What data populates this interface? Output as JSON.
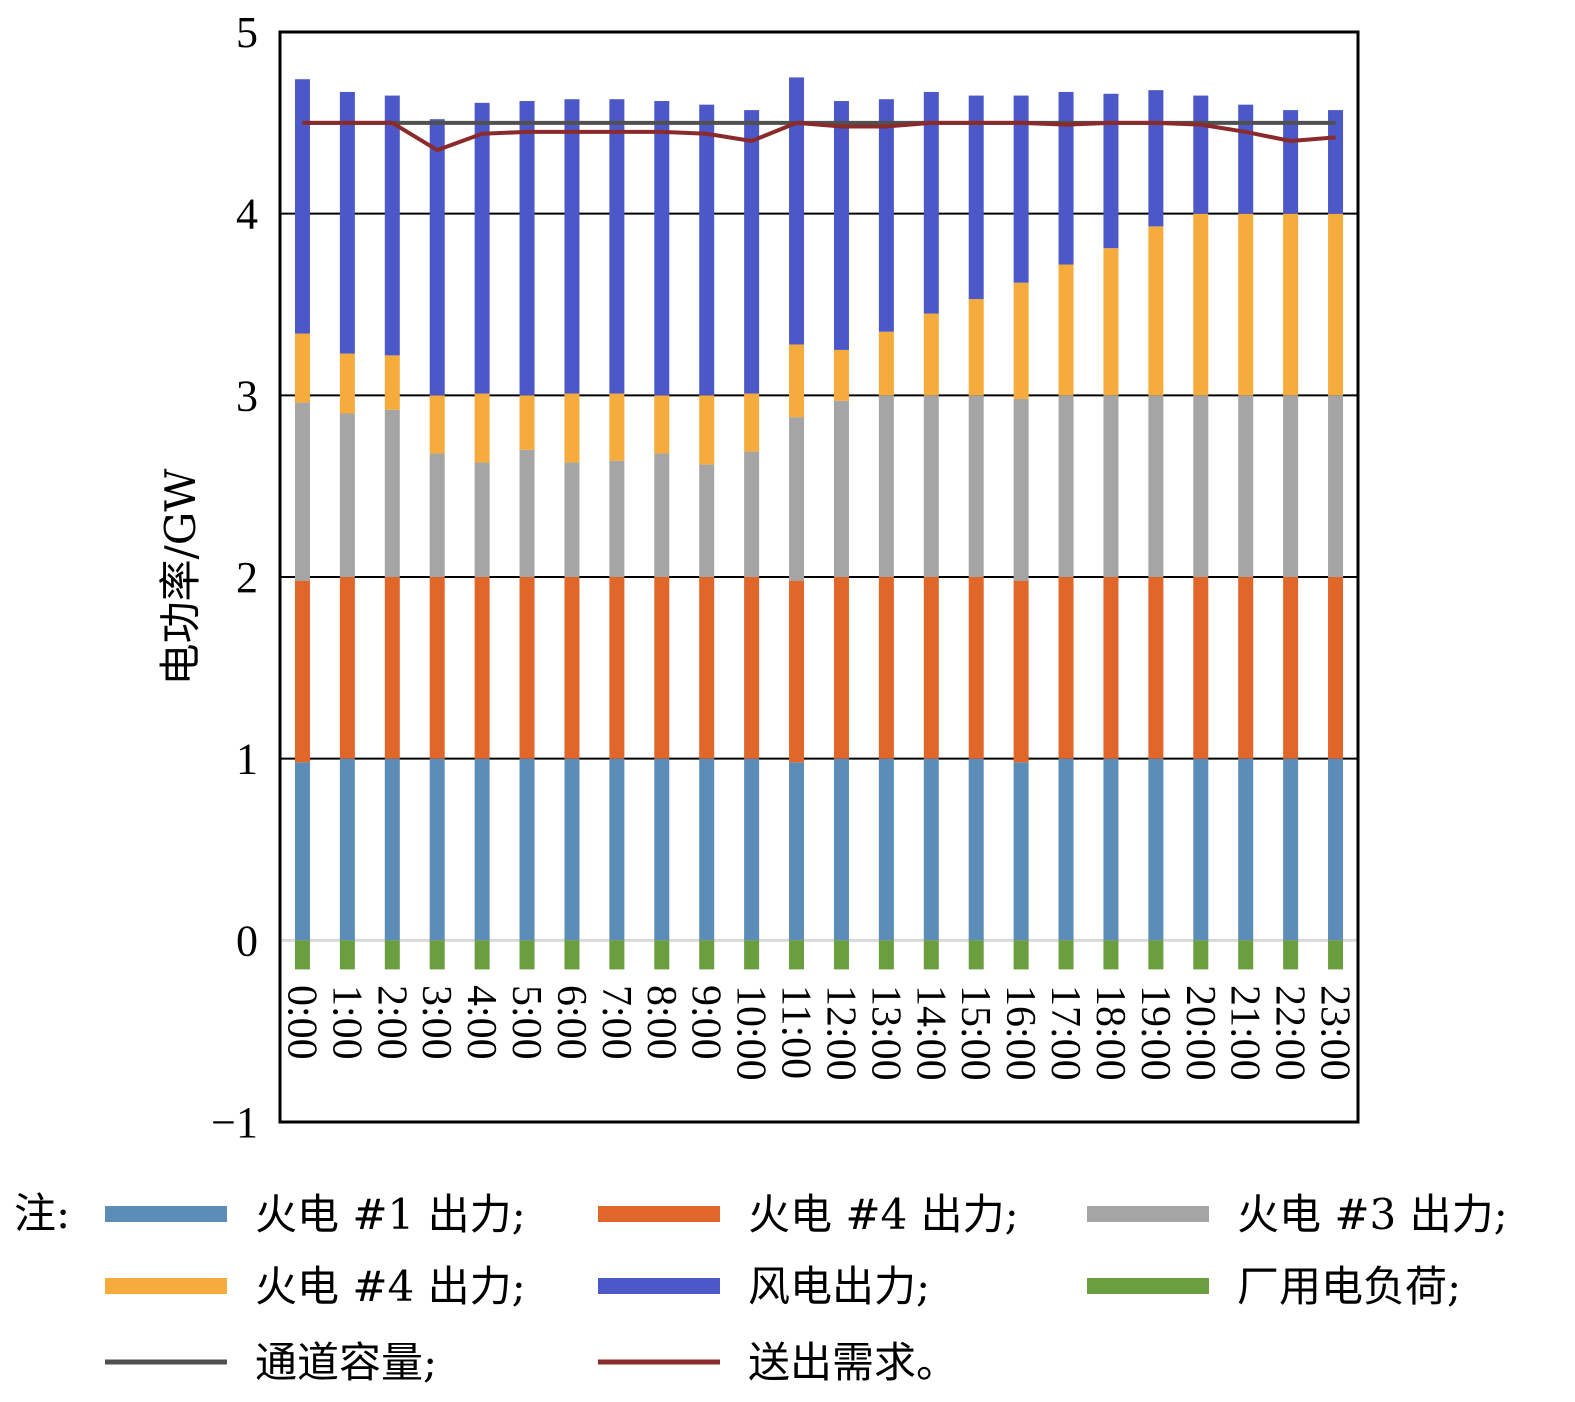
{
  "chart_data": {
    "type": "bar",
    "stacked": true,
    "ylabel": "电功率/GW",
    "xlabel": "",
    "ylim": [
      -1,
      5
    ],
    "yticks": [
      "−1",
      "0",
      "1",
      "2",
      "3",
      "4",
      "5"
    ],
    "grid": true,
    "legend_position": "bottom",
    "legend_prefix": "注:",
    "categories": [
      "0:00",
      "1:00",
      "2:00",
      "3:00",
      "4:00",
      "5:00",
      "6:00",
      "7:00",
      "8:00",
      "9:00",
      "10:00",
      "11:00",
      "12:00",
      "13:00",
      "14:00",
      "15:00",
      "16:00",
      "17:00",
      "18:00",
      "19:00",
      "20:00",
      "21:00",
      "22:00",
      "23:00"
    ],
    "series": [
      {
        "name": "火电 #1 出力",
        "legend_label": "火电 #1 出力;",
        "kind": "bar",
        "color": "#5b8db8",
        "values": [
          0.98,
          1.0,
          1.0,
          1.0,
          1.0,
          1.0,
          1.0,
          1.0,
          1.0,
          1.0,
          1.0,
          0.98,
          1.0,
          1.0,
          1.0,
          1.0,
          0.98,
          1.0,
          1.0,
          1.0,
          1.0,
          1.0,
          1.0,
          1.0
        ]
      },
      {
        "name": "火电 #4 出力",
        "legend_label": "火电 #4 出力;",
        "kind": "bar",
        "color": "#e0662a",
        "values": [
          1.0,
          1.0,
          1.0,
          1.0,
          1.0,
          1.0,
          1.0,
          1.0,
          1.0,
          1.0,
          1.0,
          1.0,
          1.0,
          1.0,
          1.0,
          1.0,
          1.0,
          1.0,
          1.0,
          1.0,
          1.0,
          1.0,
          1.0,
          1.0
        ]
      },
      {
        "name": "火电 #3 出力",
        "legend_label": "火电 #3 出力;",
        "kind": "bar",
        "color": "#a5a5a5",
        "values": [
          0.98,
          0.9,
          0.92,
          0.68,
          0.63,
          0.7,
          0.63,
          0.64,
          0.68,
          0.62,
          0.69,
          0.9,
          0.97,
          1.0,
          1.0,
          1.0,
          1.0,
          1.0,
          1.0,
          1.0,
          1.0,
          1.0,
          1.0,
          1.0
        ]
      },
      {
        "name": "火电 #4 出力 (2)",
        "legend_label": "火电 #4 出力;",
        "kind": "bar",
        "color": "#f5ac3c",
        "values": [
          0.38,
          0.33,
          0.3,
          0.32,
          0.38,
          0.3,
          0.38,
          0.37,
          0.32,
          0.38,
          0.32,
          0.4,
          0.28,
          0.35,
          0.45,
          0.53,
          0.64,
          0.72,
          0.81,
          0.93,
          1.0,
          1.0,
          1.0,
          1.0
        ]
      },
      {
        "name": "风电出力",
        "legend_label": "风电出力;",
        "kind": "bar",
        "color": "#4c57c8",
        "values": [
          1.4,
          1.44,
          1.43,
          1.52,
          1.6,
          1.62,
          1.62,
          1.62,
          1.62,
          1.6,
          1.56,
          1.47,
          1.37,
          1.28,
          1.22,
          1.12,
          1.03,
          0.95,
          0.85,
          0.75,
          0.65,
          0.6,
          0.57,
          0.57
        ]
      },
      {
        "name": "厂用电负荷",
        "legend_label": "厂用电负荷;",
        "kind": "bar",
        "color": "#6b9e3f",
        "values": [
          -0.16,
          -0.16,
          -0.16,
          -0.16,
          -0.16,
          -0.16,
          -0.16,
          -0.16,
          -0.16,
          -0.16,
          -0.16,
          -0.16,
          -0.16,
          -0.16,
          -0.16,
          -0.16,
          -0.16,
          -0.16,
          -0.16,
          -0.16,
          -0.16,
          -0.16,
          -0.16,
          -0.16
        ]
      },
      {
        "name": "通道容量",
        "legend_label": "通道容量;",
        "kind": "line",
        "color": "#505050",
        "values": [
          4.5,
          4.5,
          4.5,
          4.5,
          4.5,
          4.5,
          4.5,
          4.5,
          4.5,
          4.5,
          4.5,
          4.5,
          4.5,
          4.5,
          4.5,
          4.5,
          4.5,
          4.5,
          4.5,
          4.5,
          4.5,
          4.5,
          4.5,
          4.5
        ]
      },
      {
        "name": "送出需求",
        "legend_label": "送出需求。",
        "kind": "line",
        "color": "#8b2a2a",
        "values": [
          4.5,
          4.5,
          4.5,
          4.35,
          4.44,
          4.45,
          4.45,
          4.45,
          4.45,
          4.44,
          4.4,
          4.5,
          4.48,
          4.48,
          4.5,
          4.5,
          4.5,
          4.49,
          4.5,
          4.5,
          4.49,
          4.45,
          4.4,
          4.42
        ]
      }
    ]
  }
}
